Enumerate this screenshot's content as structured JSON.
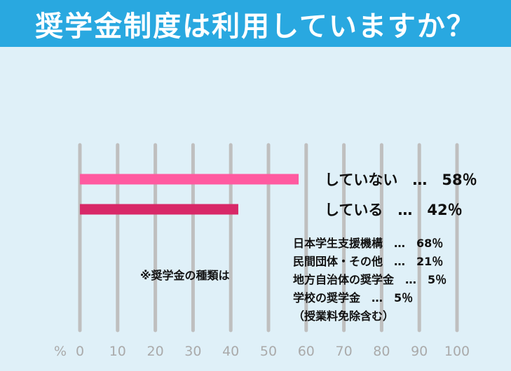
{
  "title": "奨学金制度は利用していますか？",
  "chart_data": {
    "type": "bar",
    "orientation": "horizontal",
    "unit_label": "%",
    "xlim": [
      0,
      100
    ],
    "ticks": [
      "0",
      "10",
      "20",
      "30",
      "40",
      "50",
      "60",
      "70",
      "80",
      "90",
      "100"
    ],
    "grid": true,
    "categories": [
      "していない",
      "している"
    ],
    "values": [
      58,
      42
    ],
    "bar_labels": [
      "していない　…　58％",
      "している　…　42％"
    ],
    "colors": [
      "#ff5aa0",
      "#d82868"
    ],
    "note_title": "※奨学金の種類は",
    "note_items": [
      "日本学生支援機構　…　68％",
      "民間団体・その他　…　21％",
      "地方自治体の奨学金　…　5％",
      "学校の奨学金　…　5％",
      "（授業料免除含む）"
    ],
    "grid_color": "#bfbfbf",
    "background": "#dff0f8",
    "title_bar_color": "#29a8e0"
  }
}
